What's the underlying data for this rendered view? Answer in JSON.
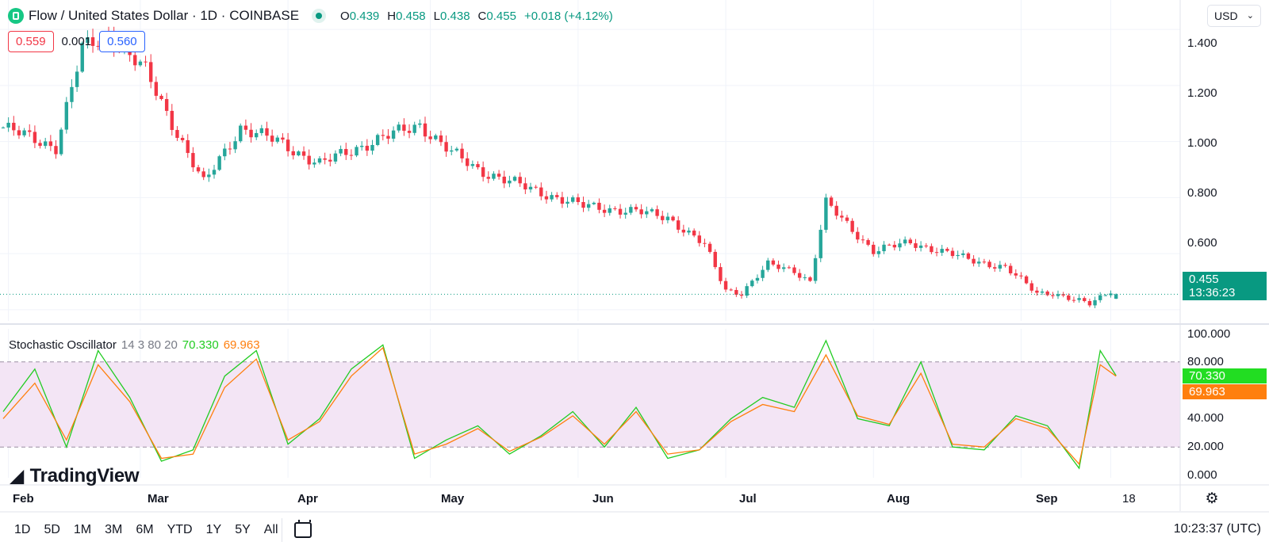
{
  "header": {
    "symbol_title": "Flow / United States Dollar · 1D · COINBASE",
    "ohlc": {
      "o_label": "O",
      "o_value": "0.439",
      "h_label": "H",
      "h_value": "0.458",
      "l_label": "L",
      "l_value": "0.438",
      "c_label": "C",
      "c_value": "0.455",
      "change": "+0.018 (+4.12%)"
    },
    "bid": "0.559",
    "spread": "0.001",
    "ask": "0.560",
    "currency": "USD"
  },
  "price_scale": {
    "ticks": [
      "1.400",
      "1.200",
      "1.000",
      "0.800",
      "0.600"
    ],
    "last_price": "0.455",
    "countdown": "13:36:23"
  },
  "stochastic": {
    "name": "Stochastic Oscillator",
    "params": "14 3 80 20",
    "k_value": "70.330",
    "d_value": "69.963",
    "ticks": [
      "100.000",
      "80.000",
      "40.000",
      "20.000",
      "0.000"
    ]
  },
  "time_axis": {
    "labels": [
      "Feb",
      "Mar",
      "Apr",
      "May",
      "Jun",
      "Jul",
      "Aug",
      "Sep",
      "18"
    ]
  },
  "bottom_bar": {
    "ranges": [
      "1D",
      "5D",
      "1M",
      "3M",
      "6M",
      "YTD",
      "1Y",
      "5Y",
      "All"
    ],
    "clock": "10:23:37 (UTC)"
  },
  "branding": "TradingView",
  "colors": {
    "up": "#26a69a",
    "down": "#f23645",
    "k_line": "#22cc22",
    "d_line": "#ff7f0e",
    "band_fill": "#f3e5f5",
    "last_price_bg": "#089981"
  },
  "chart_data": [
    {
      "type": "candlestick",
      "title": "Flow / United States Dollar · 1D · COINBASE",
      "ylim": [
        0.36,
        1.44
      ],
      "x_labels": [
        "Feb",
        "Mar",
        "Apr",
        "May",
        "Jun",
        "Jul",
        "Aug",
        "Sep",
        "18"
      ],
      "close_anchors": {
        "days": [
          0,
          10,
          15,
          20,
          27,
          30,
          38,
          45,
          52,
          60,
          70,
          79,
          85,
          90,
          100,
          110,
          120,
          126,
          133,
          137,
          140,
          145,
          150,
          153,
          156,
          165,
          172,
          183,
          190,
          196,
          199,
          202,
          206,
          210,
          211
        ],
        "close": [
          1.05,
          0.98,
          1.33,
          1.38,
          1.25,
          1.14,
          0.85,
          1.05,
          1.0,
          0.92,
          1.0,
          1.06,
          0.96,
          0.9,
          0.83,
          0.77,
          0.75,
          0.73,
          0.63,
          0.47,
          0.46,
          0.56,
          0.54,
          0.5,
          0.78,
          0.61,
          0.64,
          0.58,
          0.55,
          0.46,
          0.46,
          0.44,
          0.42,
          0.47,
          0.455
        ]
      },
      "last": {
        "open": 0.439,
        "high": 0.458,
        "low": 0.438,
        "close": 0.455
      },
      "last_price": 0.455
    },
    {
      "type": "line",
      "title": "Stochastic Oscillator",
      "ylim": [
        0,
        100
      ],
      "bands": [
        20,
        80
      ],
      "series": [
        {
          "name": "%K",
          "days": [
            0,
            6,
            12,
            18,
            24,
            30,
            36,
            42,
            48,
            54,
            60,
            66,
            72,
            78,
            84,
            90,
            96,
            102,
            108,
            114,
            120,
            126,
            132,
            138,
            144,
            150,
            156,
            162,
            168,
            174,
            180,
            186,
            192,
            198,
            204,
            208,
            211
          ],
          "values": [
            45,
            75,
            20,
            88,
            55,
            10,
            18,
            70,
            88,
            22,
            40,
            75,
            92,
            12,
            25,
            35,
            15,
            28,
            45,
            20,
            48,
            12,
            18,
            40,
            55,
            48,
            95,
            40,
            35,
            80,
            20,
            18,
            42,
            35,
            5,
            88,
            70.33
          ]
        },
        {
          "name": "%D",
          "days": [
            0,
            6,
            12,
            18,
            24,
            30,
            36,
            42,
            48,
            54,
            60,
            66,
            72,
            78,
            84,
            90,
            96,
            102,
            108,
            114,
            120,
            126,
            132,
            138,
            144,
            150,
            156,
            162,
            168,
            174,
            180,
            186,
            192,
            198,
            204,
            208,
            211
          ],
          "values": [
            40,
            65,
            25,
            78,
            52,
            12,
            15,
            62,
            82,
            25,
            38,
            70,
            90,
            15,
            22,
            33,
            17,
            27,
            42,
            22,
            45,
            15,
            18,
            38,
            50,
            45,
            85,
            42,
            36,
            72,
            22,
            20,
            40,
            33,
            8,
            78,
            69.96
          ]
        }
      ]
    }
  ]
}
